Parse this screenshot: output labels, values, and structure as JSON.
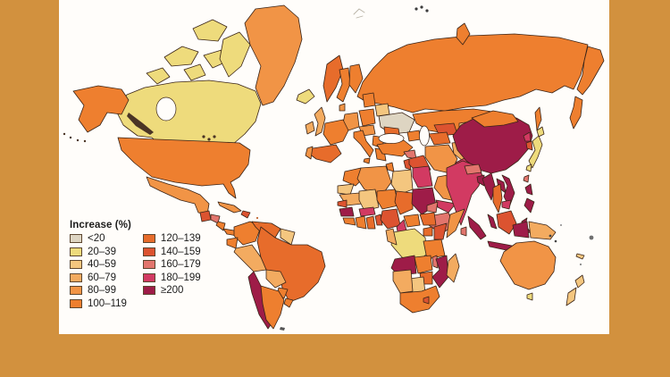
{
  "page": {
    "background": "#d2913e"
  },
  "map_panel": {
    "ocean": "#fffdfa",
    "border_stroke": "#3a2417"
  },
  "legend": {
    "title": "Increase (%)"
  },
  "chart_data": {
    "type": "heatmap",
    "subtype": "choropleth-world-map",
    "title": "Increase (%)",
    "legend_position": "bottom-left",
    "categories": [
      "<20",
      "20–39",
      "40–59",
      "60–79",
      "80–99",
      "100–119",
      "120–139",
      "140–159",
      "160–179",
      "180–199",
      "≥200"
    ],
    "colors": [
      "#ded5c2",
      "#eedb7c",
      "#f4c67f",
      "#f3ab60",
      "#f19446",
      "#ee7f2f",
      "#e76c2b",
      "#dc5330",
      "#e2756d",
      "#d23a62",
      "#9e1c48"
    ],
    "regions": {
      "greenland": "80–99",
      "canada": "20–39",
      "canada-arctic": "20–39",
      "alaska": "100–119",
      "usa": "100–119",
      "mexico": "80–99",
      "guatemala": "140–159",
      "honduras": "160–179",
      "nicaragua": "100–119",
      "panama": "100–119",
      "cuba": "80–99",
      "hispaniola": "140–159",
      "colombia": "100–119",
      "venezuela": "120–139",
      "guyanas": "40–59",
      "ecuador": "100–119",
      "peru": "60–79",
      "brazil": "120–139",
      "bolivia": "60–79",
      "paraguay": "100–119",
      "chile": "≥200",
      "argentina": "100–119",
      "uruguay": "100–119",
      "iceland": "20–39",
      "ireland": "60–79",
      "uk": "60–79",
      "norway": "120–139",
      "sweden": "100–119",
      "finland": "100–119",
      "denmark": "80–99",
      "baltics": "100–119",
      "belarus": "40–59",
      "poland": "100–119",
      "germany": "80–99",
      "france": "100–119",
      "spain": "120–139",
      "portugal": "80–99",
      "italy": "100–119",
      "sicily": "100–119",
      "czech-austria": "80–99",
      "ukraine": "<20",
      "romania": "120–139",
      "balkans": "100–119",
      "greece": "100–119",
      "russia": "100–119",
      "novaya-zemlya": "100–119",
      "kazakhstan": "100–119",
      "uzbekistan": "140–159",
      "turkmenistan": "120–139",
      "kyrgyzstan": "40–59",
      "tajikistan": "60–79",
      "caucasus": "100–119",
      "turkey": "100–119",
      "syria": "160–179",
      "levant": "140–159",
      "iraq": "140–159",
      "iran": "80–99",
      "afghanistan": "60–79",
      "pakistan": "180–199",
      "saudi-arabia": "80–99",
      "yemen": "180–199",
      "oman": "100–119",
      "india": "180–199",
      "nepal": "160–179",
      "bangladesh": "≥200",
      "sri-lanka": "160–179",
      "china": "≥200",
      "mongolia": "100–119",
      "north-korea": "180–199",
      "south-korea": "140–159",
      "japan": "20–39",
      "sakhalin": "100–119",
      "taiwan": "160–179",
      "myanmar": "≥200",
      "thailand": "120–139",
      "laos": "≥200",
      "vietnam": "≥200",
      "cambodia": "180–199",
      "malaysia": "≥200",
      "indonesia": "≥200",
      "borneo": "140–159",
      "philippines": "≥200",
      "papua-new-guinea": "60–79",
      "morocco": "100–119",
      "western-sahara": "40–59",
      "algeria": "80–99",
      "tunisia": "100–119",
      "libya": "40–59",
      "egypt": "180–199",
      "mauritania": "60–79",
      "mali": "40–59",
      "niger": "100–119",
      "chad": "120–139",
      "sudan": "≥200",
      "eritrea": "160–179",
      "ethiopia": "160–179",
      "somalia": "80–99",
      "senegal": "140–159",
      "guinea": "≥200",
      "sierra-leone-liberia": "100–119",
      "ivory-coast": "100–119",
      "ghana": "120–139",
      "burkina-faso": "180–199",
      "togo-benin": "140–159",
      "nigeria": "140–159",
      "cameroon": "180–199",
      "central-african-republic": "100–119",
      "south-sudan": "120–139",
      "uganda": "120–139",
      "kenya": "140–159",
      "drc": "20–39",
      "gabon-congo": "60–79",
      "tanzania": "100–119",
      "angola": "≥200",
      "zambia": "100–119",
      "malawi": "160–179",
      "mozambique": "≥200",
      "zimbabwe": "120–139",
      "botswana": "40–59",
      "namibia": "60–79",
      "south-africa": "100–119",
      "lesotho": "140–159",
      "madagascar": "60–79",
      "australia": "80–99",
      "tasmania": "20–39",
      "new-zealand": "40–59",
      "new-caledonia": "40–59"
    }
  }
}
